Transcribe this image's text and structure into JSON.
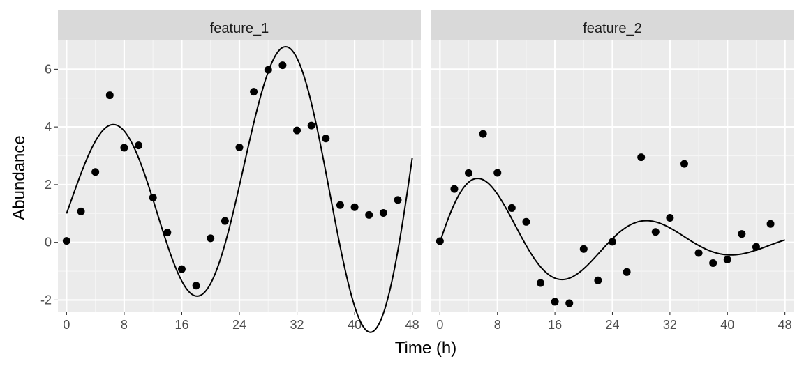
{
  "chart_data": {
    "type": "scatter",
    "xlabel": "Time (h)",
    "ylabel": "Abundance",
    "xlim": [
      -1.2,
      49.2
    ],
    "ylim": [
      -2.4,
      7.0
    ],
    "xticks": [
      0,
      8,
      16,
      24,
      32,
      40,
      48
    ],
    "xtick_labels": [
      "0",
      "8",
      "16",
      "24",
      "32",
      "40",
      "48"
    ],
    "yticks": [
      -2,
      0,
      2,
      4,
      6
    ],
    "ytick_labels": [
      "-2",
      "0",
      "2",
      "4",
      "6"
    ],
    "grid": true,
    "colors": {
      "panel_bg": "#ebebeb",
      "strip_bg": "#d9d9d9",
      "grid_major": "#ffffff",
      "grid_minor": "#f5f5f5",
      "point": "#000000",
      "line": "#000000",
      "tick": "#333333"
    },
    "panels": [
      {
        "title": "feature_1",
        "points": {
          "x": [
            0,
            2,
            4,
            6,
            8,
            10,
            12,
            14,
            16,
            18,
            20,
            22,
            24,
            26,
            28,
            30,
            32,
            34,
            36,
            38,
            40,
            42,
            44,
            46
          ],
          "y": [
            0.05,
            1.07,
            2.44,
            5.1,
            3.28,
            3.36,
            1.55,
            0.34,
            -0.93,
            -1.5,
            0.14,
            0.74,
            3.29,
            5.22,
            5.98,
            6.14,
            3.88,
            4.05,
            3.6,
            1.29,
            1.22,
            0.95,
            1.02,
            1.47
          ]
        },
        "fit": {
          "amplitude": 2.5,
          "period": 24,
          "growth": 0.02,
          "offset": 1.0,
          "offset_slope": 0.04,
          "x_range": [
            0,
            48
          ]
        }
      },
      {
        "title": "feature_2",
        "points": {
          "x": [
            0,
            2,
            4,
            6,
            8,
            10,
            12,
            14,
            16,
            18,
            20,
            22,
            24,
            26,
            28,
            30,
            32,
            34,
            36,
            38,
            40,
            42,
            44,
            46
          ],
          "y": [
            0.04,
            1.85,
            2.4,
            3.76,
            2.41,
            1.19,
            0.71,
            -1.41,
            -2.06,
            -2.11,
            -0.23,
            -1.32,
            0.02,
            -1.03,
            2.95,
            0.36,
            0.85,
            2.72,
            -0.37,
            -0.72,
            -0.6,
            0.29,
            -0.16,
            0.64
          ]
        },
        "fit": {
          "amplitude": 2.86,
          "period": 23.5,
          "growth": -0.046,
          "offset": 0.0,
          "offset_slope": 0.0,
          "x_range": [
            0,
            48
          ]
        }
      }
    ]
  }
}
